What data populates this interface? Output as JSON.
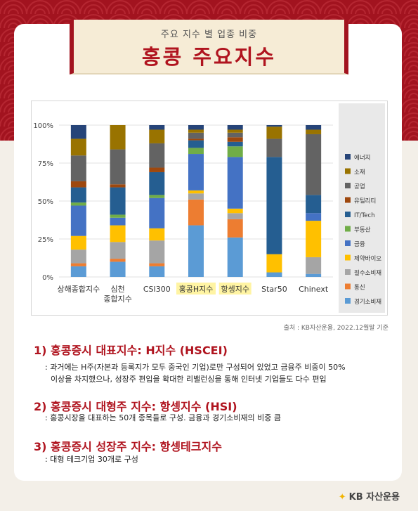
{
  "header": {
    "subtitle": "주요 지수 별 업종 비중",
    "title": "홍콩 주요지수"
  },
  "chart_data": {
    "type": "bar",
    "stacked": true,
    "ylim": [
      0,
      100
    ],
    "yticks": [
      "0%",
      "25%",
      "50%",
      "75%",
      "100%"
    ],
    "categories": [
      "상해종합지수",
      "심천|종합지수",
      "CSI300",
      "홍콩H지수",
      "항셍지수",
      "Star50",
      "Chinext"
    ],
    "highlighted": [
      "홍콩H지수",
      "항셍지수"
    ],
    "highlight_color": "#fff4a3",
    "legend_position": "right",
    "series": [
      {
        "name": "경기소비재",
        "color": "#5b9bd5",
        "values": [
          7,
          10,
          7,
          34,
          26,
          3,
          2
        ]
      },
      {
        "name": "통신",
        "color": "#ed7d31",
        "values": [
          2,
          2,
          2,
          17,
          12,
          0,
          0
        ]
      },
      {
        "name": "필수소비재",
        "color": "#a5a5a5",
        "values": [
          9,
          11,
          15,
          4,
          4,
          0,
          11
        ]
      },
      {
        "name": "제약바이오",
        "color": "#ffc000",
        "values": [
          9,
          11,
          8,
          2,
          3,
          12,
          24
        ]
      },
      {
        "name": "금융",
        "color": "#4472c4",
        "values": [
          20,
          5,
          20,
          24,
          34,
          0,
          5
        ]
      },
      {
        "name": "부동산",
        "color": "#70ad47",
        "values": [
          2,
          2,
          2,
          4,
          7,
          0,
          0
        ]
      },
      {
        "name": "IT/Tech",
        "color": "#255e91",
        "values": [
          10,
          18,
          15,
          5,
          3,
          64,
          12
        ]
      },
      {
        "name": "유틸리티",
        "color": "#9e480e",
        "values": [
          4,
          2,
          3,
          1,
          3,
          0,
          0
        ]
      },
      {
        "name": "공업",
        "color": "#636363",
        "values": [
          17,
          23,
          16,
          4,
          3,
          12,
          40
        ]
      },
      {
        "name": "소재",
        "color": "#997300",
        "values": [
          11,
          16,
          9,
          2,
          2,
          8,
          3
        ]
      },
      {
        "name": "에너지",
        "color": "#264478",
        "values": [
          9,
          0,
          3,
          3,
          3,
          1,
          3
        ]
      }
    ]
  },
  "source": "출처 : KB자산운용, 2022.12월말 기준",
  "sections": [
    {
      "title": "1) 홍콩증시 대표지수: H지수 (HSCEI)",
      "desc": [
        ": 과거에는 H주(자본과 등록지가 모두 중국인 기업)로만 구성되어 있었고 금융주 비중이 50%",
        "  이상을 차지했으나, 성장주 편입을 확대한 리밸런싱을 통해 인터넷 기업들도 다수 편입"
      ]
    },
    {
      "title": "2) 홍콩증시 대형주 지수: 항셍지수 (HSI)",
      "desc": [
        ": 홍콩시장을 대표하는 50개 종목들로 구성. 금융과 경기소비재의 비중 큼"
      ]
    },
    {
      "title": "3) 홍콩증시 성장주 지수: 항셍테크지수",
      "desc": [
        ": 대형 테크기업 30개로 구성"
      ]
    }
  ],
  "footer": {
    "logo_mark": "✦",
    "logo_text": "KB 자산운용"
  }
}
